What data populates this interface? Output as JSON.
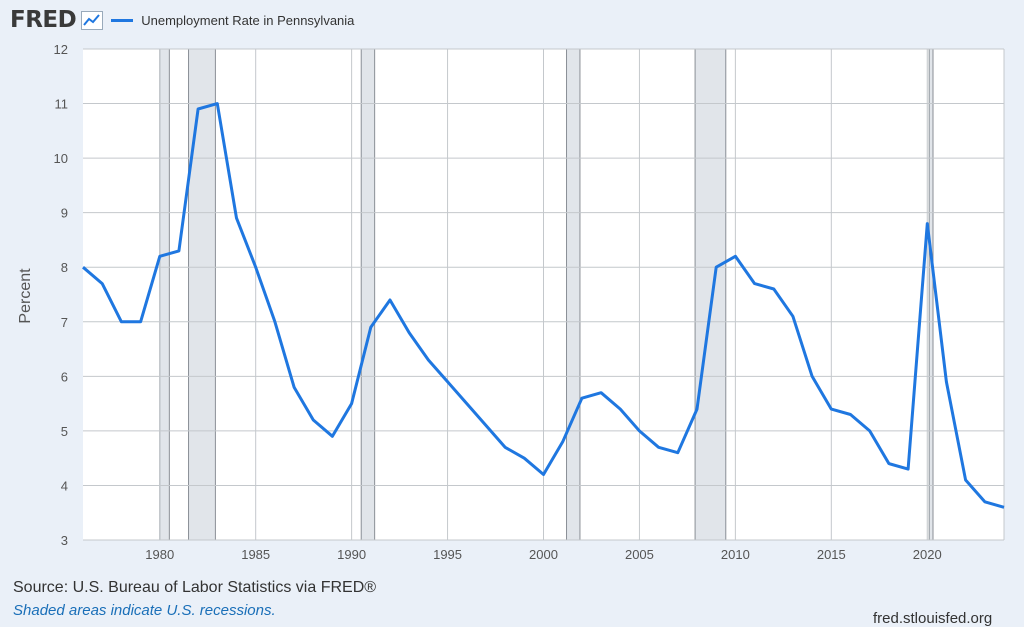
{
  "header": {
    "logo_text": "FRED",
    "logo_icon": "line-graph-icon",
    "legend_label": "Unemployment Rate in Pennsylvania",
    "series_color": "#1f77e0"
  },
  "footer": {
    "source": "Source: U.S. Bureau of Labor Statistics via FRED®",
    "note": "Shaded areas indicate U.S. recessions.",
    "site": "fred.stlouisfed.org"
  },
  "chart_data": {
    "type": "line",
    "ylabel": "Percent",
    "xlim": [
      1976,
      2024
    ],
    "ylim": [
      3,
      12
    ],
    "yticks": [
      3,
      4,
      5,
      6,
      7,
      8,
      9,
      10,
      11,
      12
    ],
    "xticks": [
      1980,
      1985,
      1990,
      1995,
      2000,
      2005,
      2010,
      2015,
      2020
    ],
    "grid": true,
    "recessions": [
      [
        1980.0,
        1980.5
      ],
      [
        1981.5,
        1982.9
      ],
      [
        1990.5,
        1991.2
      ],
      [
        2001.2,
        2001.9
      ],
      [
        2007.9,
        2009.5
      ],
      [
        2020.1,
        2020.3
      ]
    ],
    "series": [
      {
        "name": "Unemployment Rate in Pennsylvania",
        "x": [
          1976,
          1977,
          1978,
          1979,
          1980,
          1981,
          1982,
          1983,
          1984,
          1985,
          1986,
          1987,
          1988,
          1989,
          1990,
          1991,
          1992,
          1993,
          1994,
          1995,
          1996,
          1997,
          1998,
          1999,
          2000,
          2001,
          2002,
          2003,
          2004,
          2005,
          2006,
          2007,
          2008,
          2009,
          2010,
          2011,
          2012,
          2013,
          2014,
          2015,
          2016,
          2017,
          2018,
          2019,
          2020,
          2021,
          2022,
          2023,
          2024
        ],
        "values": [
          8.0,
          7.7,
          7.0,
          7.0,
          8.2,
          8.3,
          10.9,
          11.0,
          8.9,
          8.0,
          7.0,
          5.8,
          5.2,
          4.9,
          5.5,
          6.9,
          7.4,
          6.8,
          6.3,
          5.9,
          5.5,
          5.1,
          4.7,
          4.5,
          4.2,
          4.8,
          5.6,
          5.7,
          5.4,
          5.0,
          4.7,
          4.6,
          5.4,
          8.0,
          8.2,
          7.7,
          7.6,
          7.1,
          6.0,
          5.4,
          5.3,
          5.0,
          4.4,
          4.3,
          8.8,
          5.9,
          4.1,
          3.7,
          3.6
        ]
      }
    ]
  }
}
